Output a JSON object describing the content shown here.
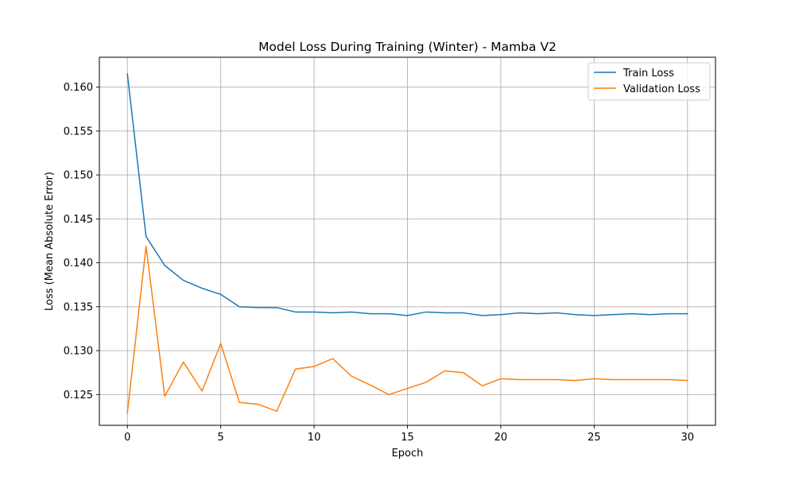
{
  "chart_data": {
    "type": "line",
    "title": "Model Loss During Training (Winter) - Mamba V2",
    "xlabel": "Epoch",
    "ylabel": "Loss (Mean Absolute Error)",
    "xlim": [
      -1.5,
      31.5
    ],
    "ylim": [
      0.1215,
      0.1634
    ],
    "xticks": [
      0,
      5,
      10,
      15,
      20,
      25,
      30
    ],
    "xtick_labels": [
      "0",
      "5",
      "10",
      "15",
      "20",
      "25",
      "30"
    ],
    "yticks": [
      0.125,
      0.13,
      0.135,
      0.14,
      0.145,
      0.15,
      0.155,
      0.16
    ],
    "ytick_labels": [
      "0.125",
      "0.130",
      "0.135",
      "0.140",
      "0.145",
      "0.150",
      "0.155",
      "0.160"
    ],
    "grid": true,
    "legend_position": "top-right",
    "x": [
      0,
      1,
      2,
      3,
      4,
      5,
      6,
      7,
      8,
      9,
      10,
      11,
      12,
      13,
      14,
      15,
      16,
      17,
      18,
      19,
      20,
      21,
      22,
      23,
      24,
      25,
      26,
      27,
      28,
      29,
      30
    ],
    "series": [
      {
        "name": "Train Loss",
        "color": "#1f77b4",
        "values": [
          0.1615,
          0.143,
          0.1397,
          0.138,
          0.1371,
          0.1364,
          0.135,
          0.1349,
          0.1349,
          0.1344,
          0.1344,
          0.1343,
          0.1344,
          0.1342,
          0.1342,
          0.134,
          0.1344,
          0.1343,
          0.1343,
          0.134,
          0.1341,
          0.1343,
          0.1342,
          0.1343,
          0.1341,
          0.134,
          0.1341,
          0.1342,
          0.1341,
          0.1342,
          0.1342
        ]
      },
      {
        "name": "Validation Loss",
        "color": "#ff7f0e",
        "values": [
          0.1229,
          0.1419,
          0.1248,
          0.1287,
          0.1254,
          0.1308,
          0.1241,
          0.1239,
          0.1231,
          0.1279,
          0.1282,
          0.1291,
          0.1271,
          0.1261,
          0.125,
          0.1257,
          0.1264,
          0.1277,
          0.1275,
          0.126,
          0.1268,
          0.1267,
          0.1267,
          0.1267,
          0.1266,
          0.1268,
          0.1267,
          0.1267,
          0.1267,
          0.1267,
          0.1266
        ]
      }
    ]
  }
}
